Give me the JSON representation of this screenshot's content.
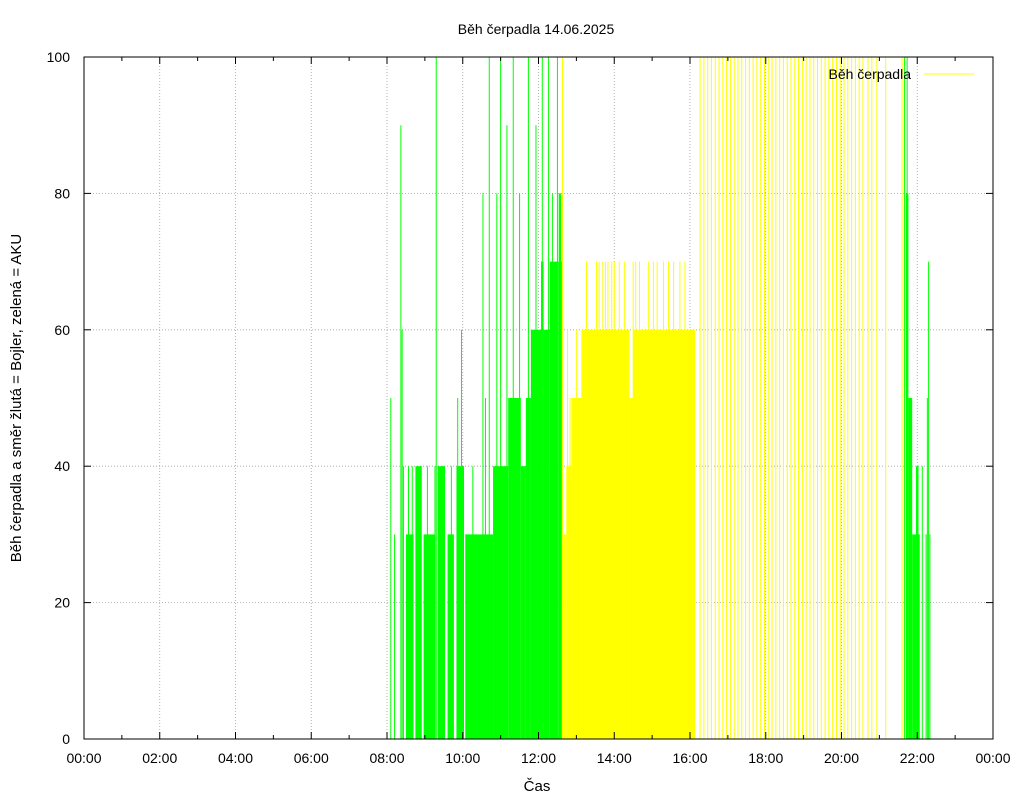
{
  "chart_data": {
    "type": "bar",
    "title": "Běh čerpadla 14.06.2025",
    "xlabel": "Čas",
    "ylabel": "Běh čerpadla a směr žlutá = Bojler, zelená = AKU",
    "xlim": [
      0,
      1440
    ],
    "ylim": [
      0,
      100
    ],
    "x_ticks": [
      "00:00",
      "02:00",
      "04:00",
      "06:00",
      "08:00",
      "10:00",
      "12:00",
      "14:00",
      "16:00",
      "18:00",
      "20:00",
      "22:00",
      "00:00"
    ],
    "y_ticks": [
      "0",
      "20",
      "40",
      "60",
      "80",
      "100"
    ],
    "grid": true,
    "legend": {
      "position": "top-right",
      "entries": [
        {
          "label": "Běh čerpadla",
          "color": "#ffff00"
        }
      ]
    },
    "colors": {
      "green": "#00ff00",
      "yellow": "#ffff00",
      "grid": "#a0a0a0"
    },
    "series": [
      {
        "color": "green",
        "blocks": [
          {
            "start": 510,
            "end": 522,
            "value": 30
          },
          {
            "start": 525,
            "end": 535,
            "value": 40
          },
          {
            "start": 538,
            "end": 556,
            "value": 30
          },
          {
            "start": 560,
            "end": 572,
            "value": 40
          },
          {
            "start": 576,
            "end": 586,
            "value": 30
          },
          {
            "start": 590,
            "end": 602,
            "value": 40
          },
          {
            "start": 604,
            "end": 648,
            "value": 30
          },
          {
            "start": 648,
            "end": 672,
            "value": 40
          },
          {
            "start": 672,
            "end": 692,
            "value": 50
          },
          {
            "start": 692,
            "end": 700,
            "value": 40
          },
          {
            "start": 700,
            "end": 708,
            "value": 50
          },
          {
            "start": 708,
            "end": 724,
            "value": 60
          },
          {
            "start": 724,
            "end": 728,
            "value": 70
          },
          {
            "start": 728,
            "end": 738,
            "value": 60
          },
          {
            "start": 738,
            "end": 752,
            "value": 70
          },
          {
            "start": 752,
            "end": 756,
            "value": 80
          },
          {
            "start": 756,
            "end": 758,
            "value": 70
          },
          {
            "start": 1302,
            "end": 1306,
            "value": 80
          },
          {
            "start": 1306,
            "end": 1312,
            "value": 50
          },
          {
            "start": 1312,
            "end": 1318,
            "value": 30
          },
          {
            "start": 1318,
            "end": 1322,
            "value": 40
          },
          {
            "start": 1320,
            "end": 1324,
            "value": 30
          }
        ],
        "spikes": [
          {
            "t": 486,
            "value": 50
          },
          {
            "t": 492,
            "value": 30
          },
          {
            "t": 502,
            "value": 90
          },
          {
            "t": 504,
            "value": 60
          },
          {
            "t": 506,
            "value": 40
          },
          {
            "t": 514,
            "value": 40
          },
          {
            "t": 520,
            "value": 40
          },
          {
            "t": 534,
            "value": 40
          },
          {
            "t": 544,
            "value": 40
          },
          {
            "t": 556,
            "value": 40
          },
          {
            "t": 558,
            "value": 100
          },
          {
            "t": 568,
            "value": 40
          },
          {
            "t": 582,
            "value": 40
          },
          {
            "t": 592,
            "value": 50
          },
          {
            "t": 598,
            "value": 60
          },
          {
            "t": 606,
            "value": 30
          },
          {
            "t": 616,
            "value": 40
          },
          {
            "t": 632,
            "value": 80
          },
          {
            "t": 636,
            "value": 50
          },
          {
            "t": 642,
            "value": 100
          },
          {
            "t": 654,
            "value": 80
          },
          {
            "t": 660,
            "value": 100
          },
          {
            "t": 670,
            "value": 90
          },
          {
            "t": 680,
            "value": 100
          },
          {
            "t": 690,
            "value": 80
          },
          {
            "t": 704,
            "value": 100
          },
          {
            "t": 716,
            "value": 90
          },
          {
            "t": 726,
            "value": 100
          },
          {
            "t": 736,
            "value": 100
          },
          {
            "t": 742,
            "value": 80
          },
          {
            "t": 750,
            "value": 100
          },
          {
            "t": 1300,
            "value": 100
          },
          {
            "t": 1304,
            "value": 100
          },
          {
            "t": 1328,
            "value": 40
          },
          {
            "t": 1334,
            "value": 30
          },
          {
            "t": 1336,
            "value": 50
          },
          {
            "t": 1338,
            "value": 70
          },
          {
            "t": 1340,
            "value": 30
          }
        ]
      },
      {
        "name": "Běh čerpadla",
        "color": "yellow",
        "blocks": [
          {
            "start": 758,
            "end": 764,
            "value": 30
          },
          {
            "start": 764,
            "end": 772,
            "value": 40
          },
          {
            "start": 772,
            "end": 788,
            "value": 50
          },
          {
            "start": 788,
            "end": 822,
            "value": 60
          },
          {
            "start": 822,
            "end": 864,
            "value": 60
          },
          {
            "start": 864,
            "end": 870,
            "value": 50
          },
          {
            "start": 870,
            "end": 906,
            "value": 60
          },
          {
            "start": 906,
            "end": 968,
            "value": 60
          }
        ],
        "spikes": [
          {
            "t": 758,
            "value": 100
          },
          {
            "t": 766,
            "value": 60
          },
          {
            "t": 770,
            "value": 50
          },
          {
            "t": 780,
            "value": 60
          },
          {
            "t": 790,
            "value": 60
          },
          {
            "t": 796,
            "value": 70
          },
          {
            "t": 806,
            "value": 60
          },
          {
            "t": 812,
            "value": 70
          },
          {
            "t": 816,
            "value": 70
          },
          {
            "t": 822,
            "value": 70
          },
          {
            "t": 826,
            "value": 70
          },
          {
            "t": 830,
            "value": 70
          },
          {
            "t": 836,
            "value": 70
          },
          {
            "t": 840,
            "value": 70
          },
          {
            "t": 848,
            "value": 70
          },
          {
            "t": 856,
            "value": 70
          },
          {
            "t": 870,
            "value": 70
          },
          {
            "t": 874,
            "value": 70
          },
          {
            "t": 880,
            "value": 70
          },
          {
            "t": 894,
            "value": 70
          },
          {
            "t": 902,
            "value": 70
          },
          {
            "t": 908,
            "value": 70
          },
          {
            "t": 918,
            "value": 70
          },
          {
            "t": 926,
            "value": 70
          },
          {
            "t": 934,
            "value": 70
          },
          {
            "t": 944,
            "value": 70
          },
          {
            "t": 952,
            "value": 70
          },
          {
            "t": 976,
            "value": 100
          },
          {
            "t": 982,
            "value": 100
          },
          {
            "t": 988,
            "value": 100
          },
          {
            "t": 994,
            "value": 100
          },
          {
            "t": 1000,
            "value": 100
          },
          {
            "t": 1006,
            "value": 100
          },
          {
            "t": 1012,
            "value": 100
          },
          {
            "t": 1018,
            "value": 100
          },
          {
            "t": 1024,
            "value": 100
          },
          {
            "t": 1030,
            "value": 100
          },
          {
            "t": 1036,
            "value": 100
          },
          {
            "t": 1042,
            "value": 100
          },
          {
            "t": 1048,
            "value": 100
          },
          {
            "t": 1054,
            "value": 100
          },
          {
            "t": 1060,
            "value": 100
          },
          {
            "t": 1066,
            "value": 100
          },
          {
            "t": 1072,
            "value": 100
          },
          {
            "t": 1078,
            "value": 100
          },
          {
            "t": 1084,
            "value": 100
          },
          {
            "t": 1090,
            "value": 100
          },
          {
            "t": 1096,
            "value": 100
          },
          {
            "t": 1102,
            "value": 100
          },
          {
            "t": 1108,
            "value": 100
          },
          {
            "t": 1114,
            "value": 100
          },
          {
            "t": 1120,
            "value": 100
          },
          {
            "t": 1126,
            "value": 100
          },
          {
            "t": 1132,
            "value": 100
          },
          {
            "t": 1138,
            "value": 100
          },
          {
            "t": 1144,
            "value": 100
          },
          {
            "t": 1150,
            "value": 100
          },
          {
            "t": 1156,
            "value": 100
          },
          {
            "t": 1162,
            "value": 100
          },
          {
            "t": 1168,
            "value": 100
          },
          {
            "t": 1174,
            "value": 100
          },
          {
            "t": 1180,
            "value": 100
          },
          {
            "t": 1186,
            "value": 100
          },
          {
            "t": 1192,
            "value": 100
          },
          {
            "t": 1198,
            "value": 100
          },
          {
            "t": 1204,
            "value": 100
          },
          {
            "t": 1210,
            "value": 100
          },
          {
            "t": 1216,
            "value": 100
          },
          {
            "t": 1222,
            "value": 100
          },
          {
            "t": 1228,
            "value": 100
          },
          {
            "t": 1234,
            "value": 100
          },
          {
            "t": 1242,
            "value": 100
          },
          {
            "t": 1248,
            "value": 100
          },
          {
            "t": 1256,
            "value": 100
          },
          {
            "t": 1270,
            "value": 100
          },
          {
            "t": 1296,
            "value": 100
          }
        ]
      }
    ]
  }
}
